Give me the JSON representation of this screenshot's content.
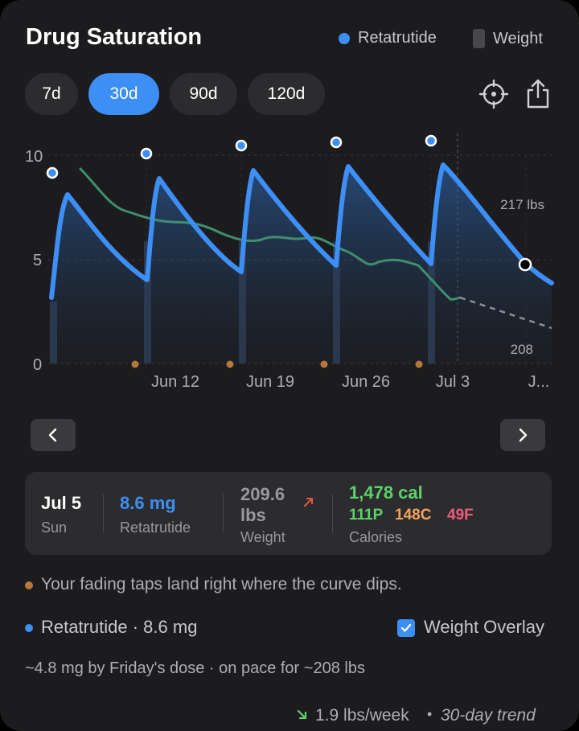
{
  "header": {
    "title": "Drug Saturation",
    "legend_drug": "Retatrutide",
    "legend_weight": "Weight"
  },
  "ranges": [
    "7d",
    "30d",
    "90d",
    "120d"
  ],
  "active_range": "30d",
  "chart_data": {
    "type": "line",
    "y_ticks": [
      "10",
      "5",
      "0"
    ],
    "ylim": [
      0,
      10
    ],
    "x_labels": [
      "Jun 12",
      "Jun 19",
      "Jun 26",
      "Jul 3",
      "J..."
    ],
    "weight_labels": [
      "217 lbs",
      "208"
    ],
    "series": [
      {
        "name": "Retatrutide",
        "color": "#3d8ef5"
      },
      {
        "name": "Weight",
        "color": "#3f8f6e"
      }
    ]
  },
  "summary": {
    "date": "Jul 5",
    "day": "Sun",
    "dose": "8.6 mg",
    "drug": "Retatrutide",
    "weight_value": "209.6",
    "weight_unit": "lbs",
    "weight_label": "Weight",
    "calories": "1,478 cal",
    "protein": "111P",
    "carbs": "148C",
    "fat": "49F",
    "calories_label": "Calories"
  },
  "notes": {
    "tap_note": "Your fading taps land right where the curve dips.",
    "drug_line": "Retatrutide · 8.6 mg",
    "overlay_label": "Weight Overlay",
    "forecast": "~4.8 mg by Friday's dose · on pace for ~208 lbs",
    "trend_value": "1.9 lbs/week",
    "trend_sep": "•",
    "trend_period": "30-day trend"
  },
  "colors": {
    "accent": "#3d8ef5",
    "weight_line": "#3f8f6e",
    "tap_dot": "#b5773a",
    "calories": "#5dd26a",
    "carbs": "#f0a35c",
    "fat": "#ef5b7a"
  }
}
